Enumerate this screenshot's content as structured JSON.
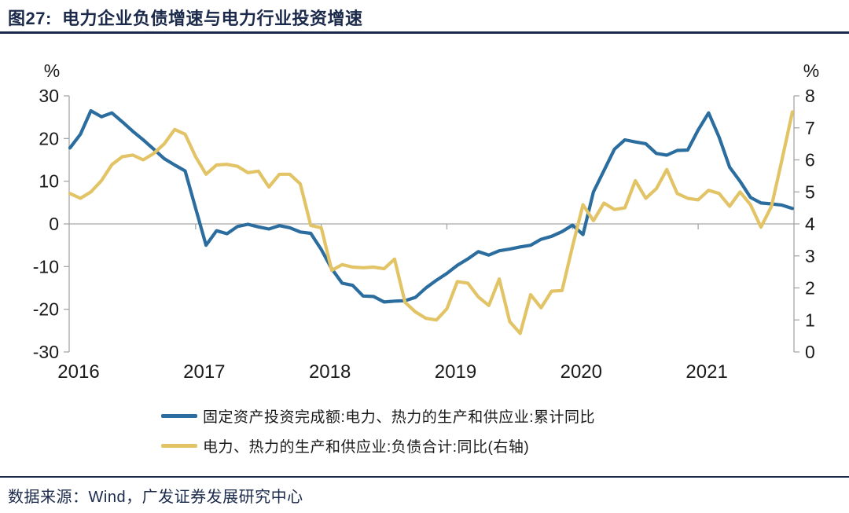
{
  "header": {
    "title": "图27:  电力企业负债增速与电力行业投资增速"
  },
  "footer": {
    "source": "数据来源：Wind，广发证券发展研究中心"
  },
  "colors": {
    "navy": "#1b2a4a",
    "blue_line": "#2a6d9e",
    "yellow_line": "#e2c466",
    "axis_gray": "#a6a6a6",
    "tick_text": "#1a1a1a"
  },
  "chart_data": {
    "type": "line",
    "title": "电力企业负债增速与电力行业投资增速",
    "grid": "horizontal-zero-line-only",
    "legend_position": "bottom",
    "x_year_ticks": [
      "2016",
      "2017",
      "2018",
      "2019",
      "2020",
      "2021"
    ],
    "left_axis": {
      "label": "%",
      "min": -30,
      "max": 30,
      "ticks": [
        30,
        20,
        10,
        0,
        -10,
        -20,
        -30
      ]
    },
    "right_axis": {
      "label": "%",
      "min": 0,
      "max": 8,
      "ticks": [
        8,
        7,
        6,
        5,
        4,
        3,
        2,
        1,
        0
      ]
    },
    "x_labels": [
      "2016-01",
      "2016-02",
      "2016-03",
      "2016-04",
      "2016-05",
      "2016-06",
      "2016-07",
      "2016-08",
      "2016-09",
      "2016-10",
      "2016-11",
      "2016-12",
      "2017-01",
      "2017-02",
      "2017-03",
      "2017-04",
      "2017-05",
      "2017-06",
      "2017-07",
      "2017-08",
      "2017-09",
      "2017-10",
      "2017-11",
      "2017-12",
      "2018-01",
      "2018-02",
      "2018-03",
      "2018-04",
      "2018-05",
      "2018-06",
      "2018-07",
      "2018-08",
      "2018-09",
      "2018-10",
      "2018-11",
      "2018-12",
      "2019-01",
      "2019-02",
      "2019-03",
      "2019-04",
      "2019-05",
      "2019-06",
      "2019-07",
      "2019-08",
      "2019-09",
      "2019-10",
      "2019-11",
      "2019-12",
      "2020-01",
      "2020-02",
      "2020-03",
      "2020-04",
      "2020-05",
      "2020-06",
      "2020-07",
      "2020-08",
      "2020-09",
      "2020-10",
      "2020-11",
      "2020-12",
      "2021-01",
      "2021-02",
      "2021-03",
      "2021-04",
      "2021-05",
      "2021-06",
      "2021-07",
      "2021-08",
      "2021-09",
      "2021-10"
    ],
    "series": [
      {
        "name": "固定资产投资完成额:电力、热力的生产和供应业:累计同比",
        "axis": "left",
        "color": "#2a6d9e",
        "values": [
          17.8,
          21.0,
          26.5,
          25.1,
          26.0,
          23.9,
          21.7,
          19.7,
          17.5,
          15.3,
          13.8,
          12.4,
          3.7,
          -5.0,
          -1.6,
          -2.3,
          -0.6,
          -0.1,
          -0.7,
          -1.2,
          -0.4,
          -0.9,
          -1.9,
          -2.2,
          -6.0,
          -10.5,
          -13.9,
          -14.4,
          -16.9,
          -17.0,
          -18.3,
          -18.1,
          -18.0,
          -17.2,
          -15.0,
          -13.2,
          -11.6,
          -9.7,
          -8.2,
          -6.5,
          -7.3,
          -6.3,
          -5.9,
          -5.4,
          -5.0,
          -3.6,
          -2.9,
          -1.8,
          -0.3,
          -2.5,
          7.5,
          12.5,
          17.5,
          19.7,
          19.2,
          18.8,
          16.5,
          16.1,
          17.2,
          17.3,
          22.0,
          26.0,
          20.3,
          13.3,
          10.0,
          6.2,
          4.9,
          4.7,
          4.4,
          3.6
        ]
      },
      {
        "name": "电力、热力的生产和供应业:负债合计:同比(右轴)",
        "axis": "right",
        "color": "#e2c466",
        "values": [
          4.95,
          4.8,
          5.0,
          5.35,
          5.85,
          6.1,
          6.15,
          6.0,
          6.2,
          6.5,
          6.95,
          6.8,
          6.1,
          5.55,
          5.84,
          5.86,
          5.8,
          5.6,
          5.65,
          5.15,
          5.55,
          5.55,
          5.25,
          3.95,
          3.88,
          2.55,
          2.73,
          2.65,
          2.63,
          2.65,
          2.6,
          2.9,
          1.55,
          1.25,
          1.05,
          1.0,
          1.35,
          2.2,
          2.15,
          1.72,
          1.45,
          2.28,
          0.95,
          0.58,
          1.79,
          1.38,
          1.9,
          1.92,
          3.3,
          4.6,
          4.1,
          4.65,
          4.45,
          4.5,
          5.35,
          4.8,
          5.1,
          5.7,
          4.95,
          4.8,
          4.75,
          5.05,
          4.95,
          4.55,
          5.0,
          4.6,
          3.9,
          4.55,
          6.0,
          7.5
        ]
      }
    ]
  }
}
